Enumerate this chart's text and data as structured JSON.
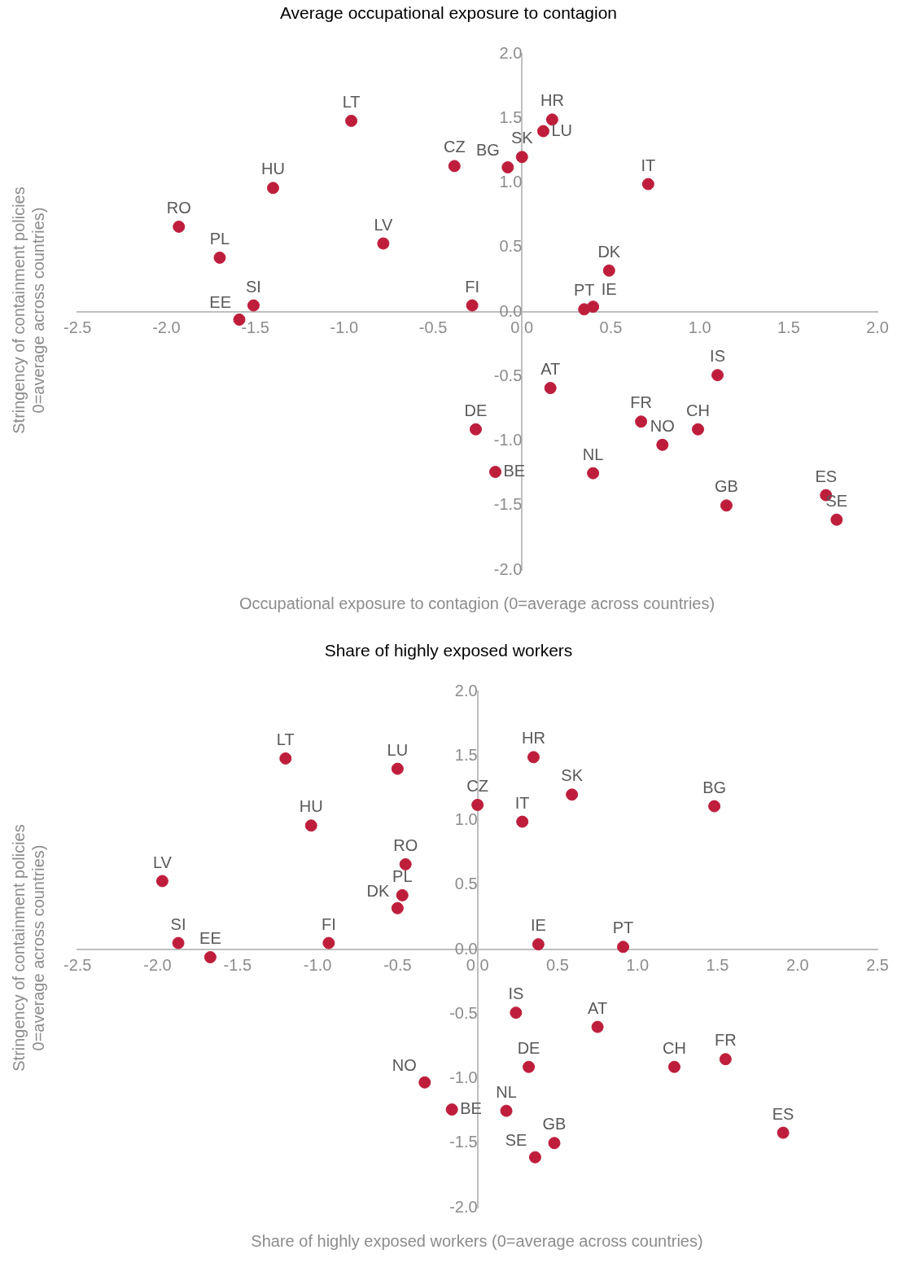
{
  "chart_data": [
    {
      "type": "scatter",
      "title": "Average occupational exposure to contagion",
      "xlabel": "Occupational exposure to contagion (0=average across countries)",
      "ylabel": "Stringency of containment policies\n0=average across countries)",
      "x": [
        -0.96,
        0.17,
        0.12,
        0.0,
        -0.08,
        -0.38,
        -1.4,
        0.71,
        -1.93,
        -1.7,
        -0.78,
        0.49,
        -0.28,
        -1.51,
        -1.59,
        0.35,
        0.4,
        1.1,
        0.16,
        0.67,
        0.99,
        0.79,
        -0.26,
        -0.15,
        0.4,
        1.15,
        1.71,
        1.77
      ],
      "series": [
        {
          "color": "#be1e3c",
          "values": [
            1.48,
            1.49,
            1.4,
            1.2,
            1.12,
            1.13,
            0.96,
            0.99,
            0.66,
            0.42,
            0.53,
            0.32,
            0.05,
            0.05,
            -0.06,
            0.02,
            0.04,
            -0.49,
            -0.59,
            -0.85,
            -0.91,
            -1.03,
            -0.91,
            -1.24,
            -1.25,
            -1.5,
            -1.42,
            -1.61
          ]
        }
      ],
      "annotations": [
        {
          "text": "LT",
          "x": -0.96,
          "y": 1.48
        },
        {
          "text": "HR",
          "x": 0.17,
          "y": 1.49
        },
        {
          "text": "LU",
          "x": 0.12,
          "y": 1.4
        },
        {
          "text": "SK",
          "x": 0.0,
          "y": 1.2
        },
        {
          "text": "BG",
          "x": -0.08,
          "y": 1.12
        },
        {
          "text": "CZ",
          "x": -0.38,
          "y": 1.13
        },
        {
          "text": "HU",
          "x": -1.4,
          "y": 0.96
        },
        {
          "text": "IT",
          "x": 0.71,
          "y": 0.99
        },
        {
          "text": "RO",
          "x": -1.93,
          "y": 0.66
        },
        {
          "text": "PL",
          "x": -1.7,
          "y": 0.42
        },
        {
          "text": "LV",
          "x": -0.78,
          "y": 0.53
        },
        {
          "text": "DK",
          "x": 0.49,
          "y": 0.32
        },
        {
          "text": "FI",
          "x": -0.28,
          "y": 0.05
        },
        {
          "text": "SI",
          "x": -1.51,
          "y": 0.05
        },
        {
          "text": "EE",
          "x": -1.59,
          "y": -0.06
        },
        {
          "text": "PT",
          "x": 0.35,
          "y": 0.02
        },
        {
          "text": "IE",
          "x": 0.4,
          "y": 0.04
        },
        {
          "text": "IS",
          "x": 1.1,
          "y": -0.49
        },
        {
          "text": "AT",
          "x": 0.16,
          "y": -0.59
        },
        {
          "text": "FR",
          "x": 0.67,
          "y": -0.85
        },
        {
          "text": "CH",
          "x": 0.99,
          "y": -0.91
        },
        {
          "text": "NO",
          "x": 0.79,
          "y": -1.03
        },
        {
          "text": "DE",
          "x": -0.26,
          "y": -0.91
        },
        {
          "text": "BE",
          "x": -0.15,
          "y": -1.24
        },
        {
          "text": "NL",
          "x": 0.4,
          "y": -1.25
        },
        {
          "text": "GB",
          "x": 1.15,
          "y": -1.5
        },
        {
          "text": "ES",
          "x": 1.71,
          "y": -1.42
        },
        {
          "text": "SE",
          "x": 1.77,
          "y": -1.61
        }
      ],
      "xlim": [
        -2.5,
        2.0
      ],
      "xticks": [
        {
          "value": -2.5,
          "label": "-2.5"
        },
        {
          "value": -2,
          "label": "-2.0"
        },
        {
          "value": -1.5,
          "label": "-1.5"
        },
        {
          "value": -1,
          "label": "-1.0"
        },
        {
          "value": -0.5,
          "label": "-0.5"
        },
        {
          "value": 0,
          "label": "0.0"
        },
        {
          "value": 0.5,
          "label": "0.5"
        },
        {
          "value": 1,
          "label": "1.0"
        },
        {
          "value": 1.5,
          "label": "1.5"
        },
        {
          "value": 2,
          "label": "2.0"
        }
      ],
      "ylim": [
        -2.0,
        2.0
      ],
      "yticks": [
        {
          "value": -2,
          "label": "-2.0"
        },
        {
          "value": -1.5,
          "label": "-1.5"
        },
        {
          "value": -1,
          "label": "-1.0"
        },
        {
          "value": -0.5,
          "label": "-0.5"
        },
        {
          "value": 0,
          "label": "0.0"
        },
        {
          "value": 0.5,
          "label": "0.5"
        },
        {
          "value": 1,
          "label": "1.0"
        },
        {
          "value": 1.5,
          "label": "1.5"
        },
        {
          "value": 2,
          "label": "2.0"
        }
      ],
      "marker": "circle",
      "grid": false,
      "legend": false
    },
    {
      "type": "scatter",
      "title": "Share of highly exposed workers",
      "xlabel": "Share of highly exposed workers (0=average across countries)",
      "ylabel": "Stringency of containment policies\n0=average across countries)",
      "x": [
        -1.2,
        -0.5,
        0.35,
        0.59,
        1.48,
        0.0,
        0.28,
        -1.04,
        -0.45,
        -0.47,
        -0.5,
        -1.97,
        -1.87,
        -1.67,
        -0.93,
        0.38,
        0.91,
        0.24,
        0.75,
        0.32,
        1.23,
        1.55,
        -0.33,
        -0.16,
        0.18,
        0.48,
        0.36,
        1.91
      ],
      "series": [
        {
          "color": "#be1e3c",
          "values": [
            1.48,
            1.4,
            1.49,
            1.2,
            1.11,
            1.12,
            0.99,
            0.96,
            0.66,
            0.42,
            0.32,
            0.53,
            0.05,
            -0.06,
            0.05,
            0.04,
            0.02,
            -0.49,
            -0.6,
            -0.91,
            -0.91,
            -0.85,
            -1.03,
            -1.24,
            -1.25,
            -1.5,
            -1.61,
            -1.42
          ]
        }
      ],
      "annotations": [
        {
          "text": "LT",
          "x": -1.2,
          "y": 1.48
        },
        {
          "text": "LU",
          "x": -0.5,
          "y": 1.4
        },
        {
          "text": "HR",
          "x": 0.35,
          "y": 1.49
        },
        {
          "text": "SK",
          "x": 0.59,
          "y": 1.2
        },
        {
          "text": "BG",
          "x": 1.48,
          "y": 1.11
        },
        {
          "text": "CZ",
          "x": 0.0,
          "y": 1.12
        },
        {
          "text": "IT",
          "x": 0.28,
          "y": 0.99
        },
        {
          "text": "HU",
          "x": -1.04,
          "y": 0.96
        },
        {
          "text": "RO",
          "x": -0.45,
          "y": 0.66
        },
        {
          "text": "PL",
          "x": -0.47,
          "y": 0.42
        },
        {
          "text": "DK",
          "x": -0.5,
          "y": 0.32
        },
        {
          "text": "LV",
          "x": -1.97,
          "y": 0.53
        },
        {
          "text": "SI",
          "x": -1.87,
          "y": 0.05
        },
        {
          "text": "EE",
          "x": -1.67,
          "y": -0.06
        },
        {
          "text": "FI",
          "x": -0.93,
          "y": 0.05
        },
        {
          "text": "IE",
          "x": 0.38,
          "y": 0.04
        },
        {
          "text": "PT",
          "x": 0.91,
          "y": 0.02
        },
        {
          "text": "IS",
          "x": 0.24,
          "y": -0.49
        },
        {
          "text": "AT",
          "x": 0.75,
          "y": -0.6
        },
        {
          "text": "DE",
          "x": 0.32,
          "y": -0.91
        },
        {
          "text": "CH",
          "x": 1.23,
          "y": -0.91
        },
        {
          "text": "FR",
          "x": 1.55,
          "y": -0.85
        },
        {
          "text": "NO",
          "x": -0.33,
          "y": -1.03
        },
        {
          "text": "BE",
          "x": -0.16,
          "y": -1.24
        },
        {
          "text": "NL",
          "x": 0.18,
          "y": -1.25
        },
        {
          "text": "GB",
          "x": 0.48,
          "y": -1.5
        },
        {
          "text": "SE",
          "x": 0.36,
          "y": -1.61
        },
        {
          "text": "ES",
          "x": 1.91,
          "y": -1.42
        }
      ],
      "xlim": [
        -2.5,
        2.5
      ],
      "xticks": [
        {
          "value": -2.5,
          "label": "-2.5"
        },
        {
          "value": -2,
          "label": "-2.0"
        },
        {
          "value": -1.5,
          "label": "-1.5"
        },
        {
          "value": -1,
          "label": "-1.0"
        },
        {
          "value": -0.5,
          "label": "-0.5"
        },
        {
          "value": 0,
          "label": "0.0"
        },
        {
          "value": 0.5,
          "label": "0.5"
        },
        {
          "value": 1,
          "label": "1.0"
        },
        {
          "value": 1.5,
          "label": "1.5"
        },
        {
          "value": 2,
          "label": "2.0"
        },
        {
          "value": 2.5,
          "label": "2.5"
        }
      ],
      "ylim": [
        -2.0,
        2.0
      ],
      "yticks": [
        {
          "value": -2,
          "label": "-2.0"
        },
        {
          "value": -1.5,
          "label": "-1.5"
        },
        {
          "value": -1,
          "label": "-1.0"
        },
        {
          "value": -0.5,
          "label": "-0.5"
        },
        {
          "value": 0,
          "label": "0.0"
        },
        {
          "value": 0.5,
          "label": "0.5"
        },
        {
          "value": 1,
          "label": "1.0"
        },
        {
          "value": 1.5,
          "label": "1.5"
        },
        {
          "value": 2,
          "label": "2.0"
        }
      ],
      "marker": "circle",
      "grid": false,
      "legend": false
    }
  ]
}
